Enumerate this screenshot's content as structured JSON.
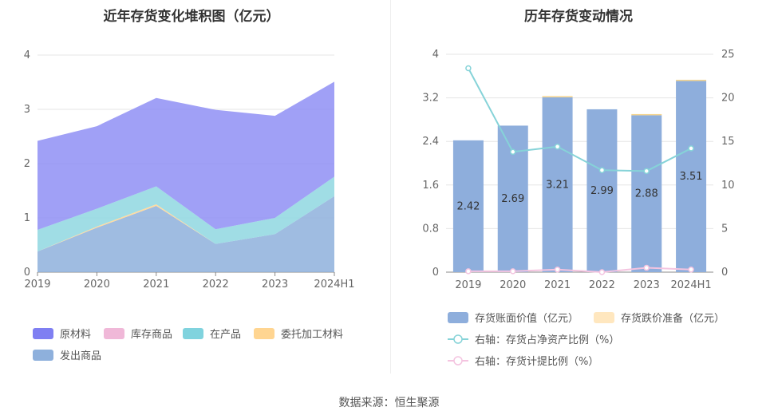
{
  "left_chart": {
    "title": "近年存货变化堆积图（亿元）",
    "chart_data": {
      "type": "area",
      "stacked": true,
      "categories": [
        "2019",
        "2020",
        "2021",
        "2022",
        "2023",
        "2024H1"
      ],
      "y_ticks": [
        "0",
        "1",
        "2",
        "3",
        "4"
      ],
      "ylim": [
        0,
        4
      ],
      "series": [
        {
          "name": "发出商品",
          "color": "#8eb0dc",
          "values": [
            0.38,
            0.82,
            1.22,
            0.52,
            0.7,
            1.4
          ]
        },
        {
          "name": "委托加工材料",
          "color": "#ffd591",
          "values": [
            0.0,
            0.02,
            0.03,
            0.0,
            0.0,
            0.0
          ]
        },
        {
          "name": "在产品",
          "color": "#8fd7e0",
          "values": [
            0.4,
            0.33,
            0.33,
            0.27,
            0.3,
            0.36
          ]
        },
        {
          "name": "库存商品",
          "color": "#f0b8d8",
          "values": [
            0.0,
            0.0,
            0.0,
            0.0,
            0.0,
            0.0
          ]
        },
        {
          "name": "原材料",
          "color": "#8f8ff5",
          "values": [
            1.64,
            1.52,
            1.63,
            2.2,
            1.88,
            1.75
          ]
        }
      ]
    },
    "legend": [
      {
        "label": "原材料",
        "color": "#7f7ff2"
      },
      {
        "label": "库存商品",
        "color": "#f0b8d8"
      },
      {
        "label": "在产品",
        "color": "#80d3de"
      },
      {
        "label": "委托加工材料",
        "color": "#ffd591"
      },
      {
        "label": "发出商品",
        "color": "#8eb0dc"
      }
    ]
  },
  "right_chart": {
    "title": "历年存货变动情况",
    "chart_data": {
      "type": "bar",
      "categories": [
        "2019",
        "2020",
        "2021",
        "2022",
        "2023",
        "2024H1"
      ],
      "left_ticks": [
        "0",
        "0.8",
        "1.6",
        "2.4",
        "3.2",
        "4"
      ],
      "right_ticks": [
        "0",
        "5",
        "10",
        "15",
        "20",
        "25"
      ],
      "ylim": [
        0,
        4
      ],
      "y2lim": [
        0,
        25
      ],
      "series": [
        {
          "name": "存货账面价值（亿元）",
          "type": "bar",
          "axis": "left",
          "color": "#8eaedc",
          "values": [
            2.42,
            2.69,
            3.21,
            2.99,
            2.88,
            3.51
          ],
          "labels": [
            "2.42",
            "2.69",
            "3.21",
            "2.99",
            "2.88",
            "3.51"
          ]
        },
        {
          "name": "存货跌价准备（亿元）",
          "type": "bar",
          "axis": "left",
          "color": "#ffe7bf",
          "values": [
            0,
            0,
            0.01,
            0,
            0.02,
            0.01
          ]
        },
        {
          "name": "右轴：存货占净资产比例（%）",
          "type": "line",
          "axis": "right",
          "color": "#86d3d8",
          "values": [
            23.4,
            13.8,
            14.4,
            11.7,
            11.6,
            14.2
          ]
        },
        {
          "name": "右轴：存货计提比例（%）",
          "type": "line",
          "axis": "right",
          "color": "#f4c4e0",
          "values": [
            0.1,
            0.1,
            0.3,
            0.0,
            0.5,
            0.3
          ]
        }
      ]
    },
    "legend": [
      {
        "label": "存货账面价值（亿元）",
        "color": "#8eaedc",
        "kind": "box"
      },
      {
        "label": "存货跌价准备（亿元）",
        "color": "#ffe7bf",
        "kind": "box"
      },
      {
        "label": "右轴：存货占净资产比例（%）",
        "color": "#86d3d8",
        "kind": "line"
      },
      {
        "label": "右轴：存货计提比例（%）",
        "color": "#f4c4e0",
        "kind": "line"
      }
    ]
  },
  "footer": {
    "source": "数据来源：恒生聚源"
  }
}
